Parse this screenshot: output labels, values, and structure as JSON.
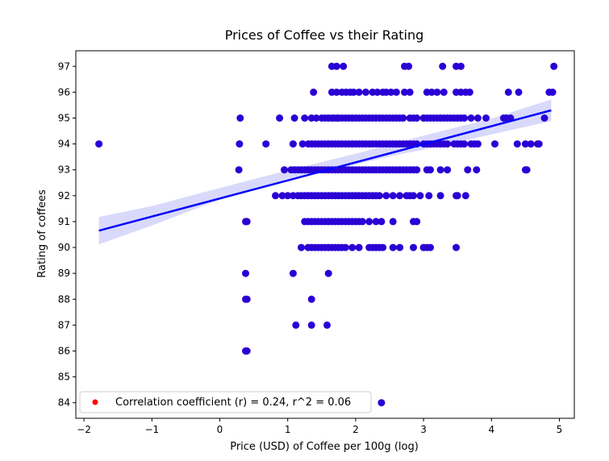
{
  "chart_data": {
    "type": "scatter",
    "title": "Prices of Coffee vs their Rating",
    "xlabel": "Price (USD) of Coffee per 100g (log)",
    "ylabel": "Rating of coffees",
    "xlim": [
      -2.12,
      5.22
    ],
    "ylim": [
      83.4,
      97.6
    ],
    "xticks": [
      -2,
      -1,
      0,
      1,
      2,
      3,
      4,
      5
    ],
    "yticks": [
      84,
      85,
      86,
      87,
      88,
      89,
      90,
      91,
      92,
      93,
      94,
      95,
      96,
      97
    ],
    "xtick_labels": [
      "−2",
      "−1",
      "0",
      "1",
      "2",
      "3",
      "4",
      "5"
    ],
    "ytick_labels": [
      "84",
      "85",
      "86",
      "87",
      "88",
      "89",
      "90",
      "91",
      "92",
      "93",
      "94",
      "95",
      "96",
      "97"
    ],
    "grid": false,
    "legend_position": "lower-left",
    "legend": [
      {
        "label": "Correlation coefficient (r) = 0.24, r^2 = 0.06",
        "color": "#ff0000"
      }
    ],
    "point_color": "#2a00d5",
    "regression_color": "#0000ff",
    "band_color": "#d9d9fb",
    "regression": {
      "x": [
        -1.78,
        4.88
      ],
      "y": [
        90.65,
        95.3
      ]
    },
    "confidence_band": {
      "x": [
        -1.78,
        -1.0,
        0.0,
        1.0,
        2.0,
        2.6,
        3.0,
        4.0,
        4.88
      ],
      "lower": [
        90.12,
        90.85,
        91.85,
        92.65,
        93.2,
        93.58,
        93.78,
        94.37,
        94.88
      ],
      "upper": [
        91.18,
        91.6,
        92.3,
        92.98,
        93.62,
        94.04,
        94.32,
        94.98,
        95.72
      ]
    },
    "points": [
      {
        "y": 97,
        "x": [
          1.65,
          1.72,
          1.82,
          2.72,
          2.78,
          3.28,
          3.48,
          3.55,
          4.92
        ]
      },
      {
        "y": 96,
        "x": [
          1.38,
          1.65,
          1.72,
          1.8,
          1.86,
          1.92,
          1.97,
          2.05,
          2.15,
          2.25,
          2.32,
          2.4,
          2.45,
          2.52,
          2.6,
          2.72,
          2.8,
          3.05,
          3.12,
          3.2,
          3.3,
          3.48,
          3.55,
          3.62,
          3.68,
          4.25,
          4.4,
          4.85,
          4.9
        ]
      },
      {
        "y": 95,
        "x": [
          0.3,
          0.88,
          1.1,
          1.25,
          1.35,
          1.42,
          1.5,
          1.55,
          1.6,
          1.65,
          1.68,
          1.72,
          1.75,
          1.8,
          1.85,
          1.9,
          1.95,
          2.0,
          2.05,
          2.1,
          2.15,
          2.2,
          2.25,
          2.3,
          2.35,
          2.4,
          2.45,
          2.5,
          2.55,
          2.6,
          2.65,
          2.7,
          2.8,
          2.85,
          2.9,
          3.0,
          3.05,
          3.1,
          3.15,
          3.2,
          3.25,
          3.3,
          3.35,
          3.4,
          3.45,
          3.5,
          3.55,
          3.6,
          3.7,
          3.8,
          3.92,
          4.18,
          4.22,
          4.28,
          4.78
        ]
      },
      {
        "y": 94,
        "x": [
          -1.78,
          0.29,
          0.68,
          1.08,
          1.22,
          1.3,
          1.35,
          1.4,
          1.45,
          1.5,
          1.55,
          1.6,
          1.65,
          1.7,
          1.75,
          1.8,
          1.85,
          1.9,
          1.95,
          2.0,
          2.05,
          2.1,
          2.15,
          2.2,
          2.25,
          2.3,
          2.35,
          2.4,
          2.45,
          2.5,
          2.55,
          2.6,
          2.65,
          2.7,
          2.75,
          2.8,
          2.85,
          2.9,
          3.0,
          3.05,
          3.1,
          3.15,
          3.2,
          3.25,
          3.3,
          3.35,
          3.45,
          3.5,
          3.55,
          3.6,
          3.7,
          3.75,
          3.8,
          4.05,
          4.38,
          4.5,
          4.58,
          4.68,
          4.7
        ]
      },
      {
        "y": 93,
        "x": [
          0.28,
          0.95,
          1.05,
          1.1,
          1.15,
          1.2,
          1.25,
          1.3,
          1.35,
          1.4,
          1.45,
          1.5,
          1.55,
          1.6,
          1.65,
          1.7,
          1.75,
          1.8,
          1.85,
          1.9,
          1.95,
          2.0,
          2.05,
          2.1,
          2.15,
          2.2,
          2.25,
          2.3,
          2.35,
          2.4,
          2.45,
          2.5,
          2.55,
          2.6,
          2.65,
          2.7,
          2.75,
          2.8,
          2.85,
          2.9,
          3.05,
          3.1,
          3.25,
          3.35,
          3.65,
          3.78,
          4.5,
          4.52
        ]
      },
      {
        "y": 92,
        "x": [
          0.82,
          0.92,
          1.0,
          1.08,
          1.15,
          1.2,
          1.25,
          1.3,
          1.35,
          1.4,
          1.45,
          1.5,
          1.55,
          1.6,
          1.65,
          1.7,
          1.75,
          1.8,
          1.85,
          1.9,
          1.95,
          2.0,
          2.05,
          2.1,
          2.15,
          2.2,
          2.25,
          2.3,
          2.35,
          2.45,
          2.55,
          2.65,
          2.75,
          2.8,
          2.85,
          2.95,
          3.08,
          3.25,
          3.48,
          3.5,
          3.62
        ]
      },
      {
        "y": 91,
        "x": [
          0.38,
          0.4,
          1.25,
          1.3,
          1.35,
          1.4,
          1.45,
          1.5,
          1.55,
          1.6,
          1.65,
          1.7,
          1.75,
          1.8,
          1.85,
          1.9,
          1.95,
          2.0,
          2.05,
          2.1,
          2.2,
          2.3,
          2.38,
          2.55,
          2.85,
          2.9
        ]
      },
      {
        "y": 90,
        "x": [
          1.2,
          1.3,
          1.35,
          1.4,
          1.45,
          1.5,
          1.55,
          1.6,
          1.65,
          1.7,
          1.75,
          1.8,
          1.85,
          1.95,
          2.05,
          2.2,
          2.25,
          2.3,
          2.35,
          2.4,
          2.55,
          2.65,
          2.85,
          3.0,
          3.05,
          3.1,
          3.48
        ]
      },
      {
        "y": 89,
        "x": [
          0.38,
          1.08,
          1.6
        ]
      },
      {
        "y": 88,
        "x": [
          0.38,
          0.4,
          1.35
        ]
      },
      {
        "y": 87,
        "x": [
          1.12,
          1.35,
          1.58
        ]
      },
      {
        "y": 86,
        "x": [
          0.38,
          0.4
        ]
      },
      {
        "y": 84,
        "x": [
          2.38
        ]
      }
    ]
  }
}
